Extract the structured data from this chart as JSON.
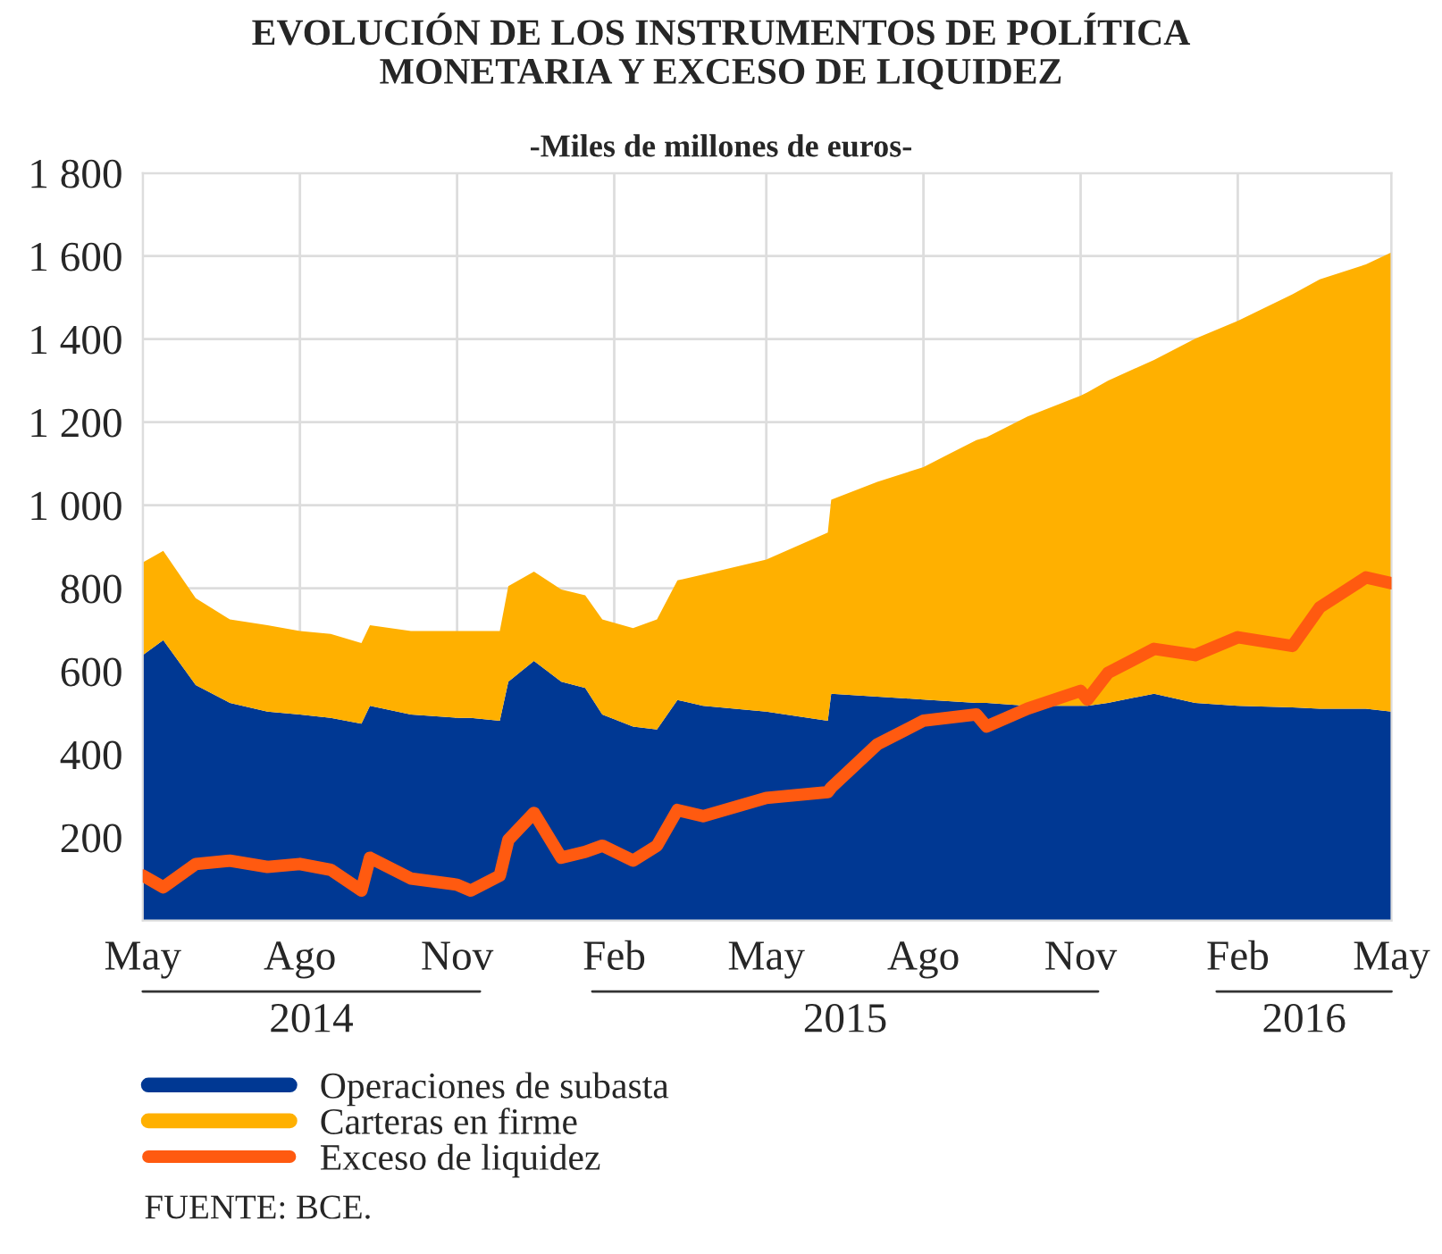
{
  "chart_data": {
    "type": "area",
    "stacked": true,
    "title": "EVOLUCIÓN DE LOS INSTRUMENTOS DE POLÍTICA\nMONETARIA Y EXCESO DE LIQUIDEZ",
    "subtitle": "-Miles de millones de euros-",
    "x": [
      "2014-05-01",
      "2014-05-13",
      "2014-06-01",
      "2014-06-21",
      "2014-07-13",
      "2014-08-01",
      "2014-08-19",
      "2014-09-06",
      "2014-09-11",
      "2014-10-05",
      "2014-11-01",
      "2014-11-09",
      "2014-11-26",
      "2014-12-01",
      "2014-12-16",
      "2015-01-01",
      "2015-01-15",
      "2015-01-25",
      "2015-02-12",
      "2015-02-26",
      "2015-03-10",
      "2015-03-25",
      "2015-05-01",
      "2015-06-06",
      "2015-06-08",
      "2015-07-05",
      "2015-08-01",
      "2015-09-01",
      "2015-09-07",
      "2015-10-01",
      "2015-11-01",
      "2015-11-05",
      "2015-11-17",
      "2015-12-14",
      "2016-01-07",
      "2016-02-01",
      "2016-03-04",
      "2016-03-20",
      "2016-04-16",
      "2016-05-01"
    ],
    "series": [
      {
        "name": "Operaciones de subasta",
        "color": "#003893",
        "values": [
          639,
          675,
          567,
          524,
          503,
          496,
          488,
          474,
          517,
          496,
          488,
          488,
          481,
          575,
          625,
          575,
          560,
          496,
          467,
          460,
          531,
          517,
          503,
          481,
          546,
          539,
          532,
          524,
          524,
          517,
          517,
          517,
          524,
          546,
          524,
          517,
          513,
          510,
          510,
          503
        ]
      },
      {
        "name": "Carteras en firme",
        "color": "#ffb000",
        "values": [
          223,
          215,
          209,
          201,
          208,
          201,
          202,
          194,
          194,
          201,
          209,
          209,
          216,
          230,
          215,
          222,
          223,
          229,
          237,
          265,
          288,
          316,
          366,
          453,
          467,
          517,
          560,
          633,
          640,
          697,
          747,
          755,
          776,
          804,
          877,
          927,
          995,
          1034,
          1070,
          1106
        ]
      },
      {
        "name": "Exceso de liquidez",
        "type": "line",
        "color": "#ff5a10",
        "values": [
          108,
          80,
          136,
          144,
          129,
          136,
          122,
          72,
          151,
          101,
          86,
          72,
          108,
          194,
          259,
          151,
          165,
          180,
          144,
          180,
          266,
          251,
          295,
          309,
          320,
          424,
          481,
          496,
          467,
          510,
          553,
          532,
          596,
          654,
          639,
          682,
          661,
          754,
          826,
          812
        ]
      }
    ],
    "xlim": [
      "2014-05-01",
      "2016-05-01"
    ],
    "xticks": [
      {
        "value": "2014-05-01",
        "label": "May"
      },
      {
        "value": "2014-08-01",
        "label": "Ago"
      },
      {
        "value": "2014-11-01",
        "label": "Nov"
      },
      {
        "value": "2015-02-01",
        "label": "Feb"
      },
      {
        "value": "2015-05-01",
        "label": "May"
      },
      {
        "value": "2015-08-01",
        "label": "Ago"
      },
      {
        "value": "2015-11-01",
        "label": "Nov"
      },
      {
        "value": "2016-02-01",
        "label": "Feb"
      },
      {
        "value": "2016-05-01",
        "label": "May"
      }
    ],
    "ylim": [
      0,
      1800
    ],
    "yticks": [
      200,
      400,
      600,
      800,
      {
        "value": 1000,
        "label": "1 000"
      },
      {
        "value": 1200,
        "label": "1 200"
      },
      {
        "value": 1400,
        "label": "1 400"
      },
      {
        "value": 1600,
        "label": "1 600"
      },
      {
        "value": 1800,
        "label": "1 800"
      }
    ],
    "grid": true,
    "legend": "bottom left",
    "annotations": [
      "2014",
      "2015",
      "2016",
      "FUENTE: BCE."
    ]
  }
}
